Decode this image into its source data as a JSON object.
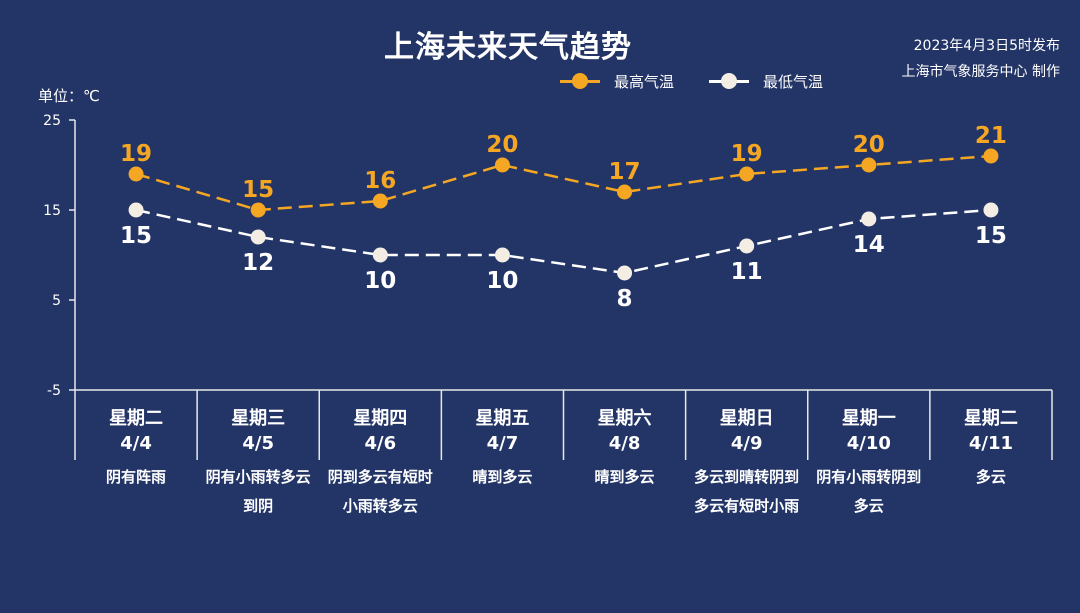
{
  "header": {
    "title": "上海未来天气趋势",
    "publish_time": "2023年4月3日5时发布",
    "publisher": "上海市气象服务中心 制作",
    "unit_label": "单位：℃"
  },
  "colors": {
    "background": "#233566",
    "high_series": "#f5a623",
    "low_series": "#ffffff",
    "low_dot": "#f3ede4",
    "axis": "#e8e8e8"
  },
  "chart_data": {
    "type": "line",
    "ylabel": "单位：℃",
    "ylim": [
      -5,
      25
    ],
    "yticks": [
      25,
      15,
      5,
      -5
    ],
    "legend_position": "top",
    "grid": false,
    "categories": [
      "星期二 4/4",
      "星期三 4/5",
      "星期四 4/6",
      "星期五 4/7",
      "星期六 4/8",
      "星期日 4/9",
      "星期一 4/10",
      "星期二 4/11"
    ],
    "weekdays": [
      "星期二",
      "星期三",
      "星期四",
      "星期五",
      "星期六",
      "星期日",
      "星期一",
      "星期二"
    ],
    "dates": [
      "4/4",
      "4/5",
      "4/6",
      "4/7",
      "4/8",
      "4/9",
      "4/10",
      "4/11"
    ],
    "descriptions": [
      "阴有阵雨",
      "阴有小雨转多云到阴",
      "阴到多云有短时小雨转多云",
      "晴到多云",
      "晴到多云",
      "多云到晴转阴到多云有短时小雨",
      "阴有小雨转阴到多云",
      "多云"
    ],
    "series": [
      {
        "name": "最高气温",
        "values": [
          19,
          15,
          16,
          20,
          17,
          19,
          20,
          21
        ]
      },
      {
        "name": "最低气温",
        "values": [
          15,
          12,
          10,
          10,
          8,
          11,
          14,
          15
        ]
      }
    ]
  }
}
